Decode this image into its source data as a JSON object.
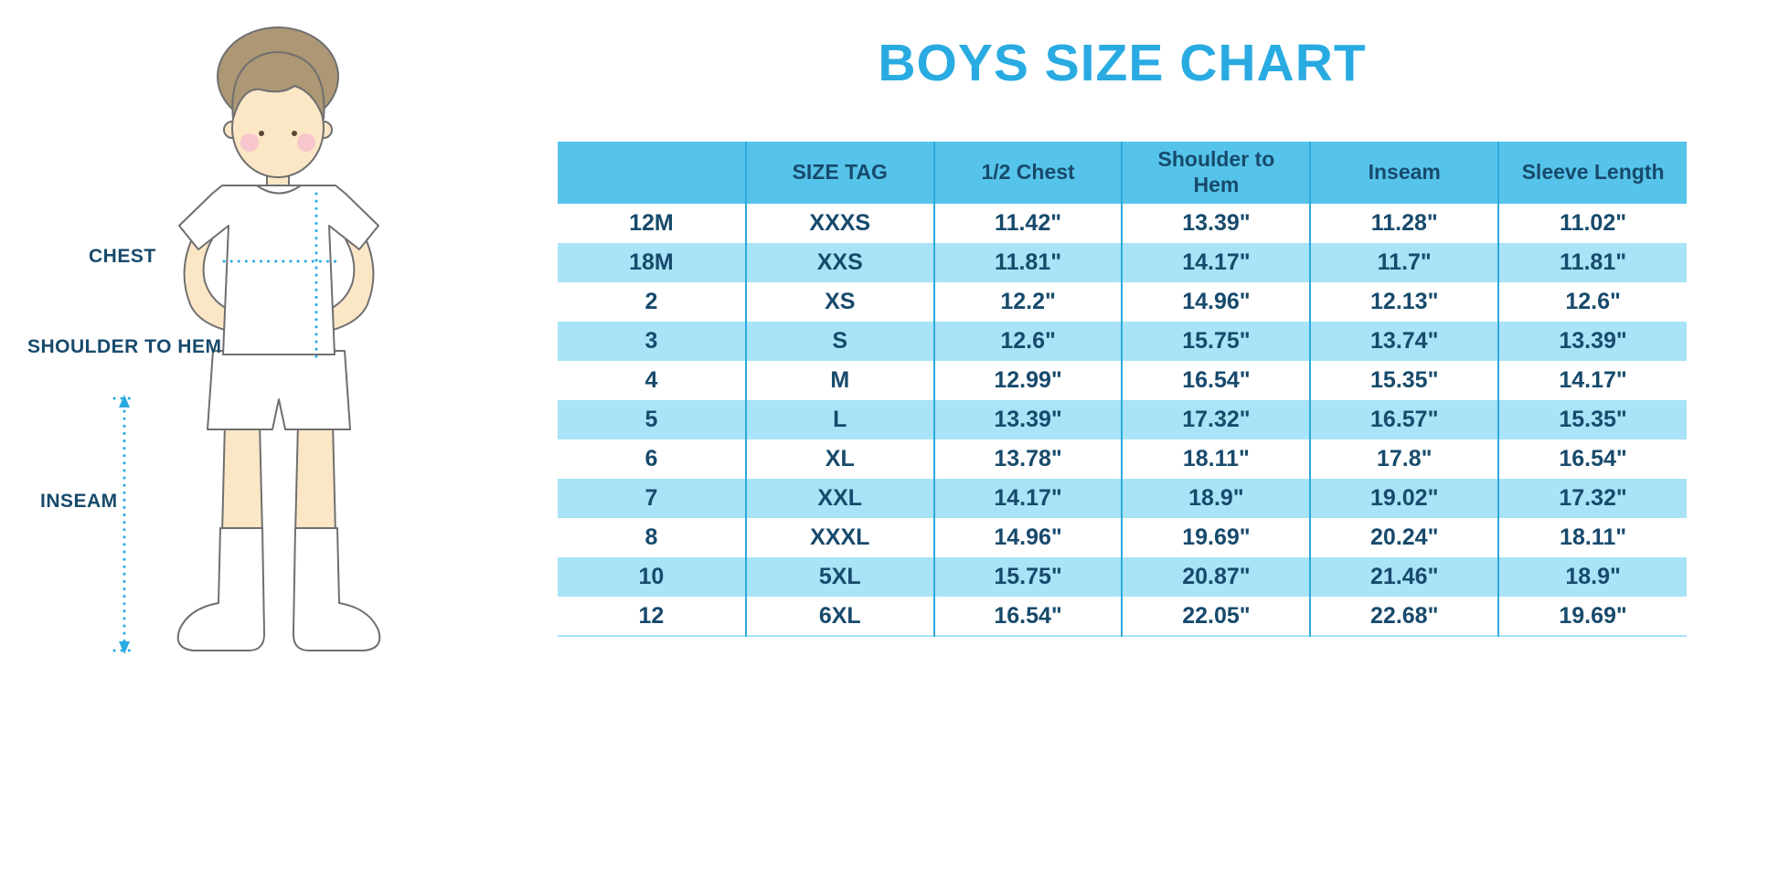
{
  "title": "BOYS SIZE CHART",
  "colors": {
    "title": "#29ABE2",
    "header": "#56C4EA",
    "stripe": "#A8E3F7",
    "navy": "#174A6C",
    "line": "#2EA9DC"
  },
  "figure": {
    "labels": [
      {
        "text": "CHEST"
      },
      {
        "text": "SHOULDER TO HEM"
      },
      {
        "text": "INSEAM"
      }
    ]
  },
  "chart_data": {
    "type": "table",
    "title": "BOYS SIZE CHART",
    "columns": [
      "",
      "SIZE TAG",
      "1/2 Chest",
      "Shoulder to Hem",
      "Inseam",
      "Sleeve Length"
    ],
    "rows": [
      [
        "12M",
        "XXXS",
        "11.42\"",
        "13.39\"",
        "11.28\"",
        "11.02\""
      ],
      [
        "18M",
        "XXS",
        "11.81\"",
        "14.17\"",
        "11.7\"",
        "11.81\""
      ],
      [
        "2",
        "XS",
        "12.2\"",
        "14.96\"",
        "12.13\"",
        "12.6\""
      ],
      [
        "3",
        "S",
        "12.6\"",
        "15.75\"",
        "13.74\"",
        "13.39\""
      ],
      [
        "4",
        "M",
        "12.99\"",
        "16.54\"",
        "15.35\"",
        "14.17\""
      ],
      [
        "5",
        "L",
        "13.39\"",
        "17.32\"",
        "16.57\"",
        "15.35\""
      ],
      [
        "6",
        "XL",
        "13.78\"",
        "18.11\"",
        "17.8\"",
        "16.54\""
      ],
      [
        "7",
        "XXL",
        "14.17\"",
        "18.9\"",
        "19.02\"",
        "17.32\""
      ],
      [
        "8",
        "XXXL",
        "14.96\"",
        "19.69\"",
        "20.24\"",
        "18.11\""
      ],
      [
        "10",
        "5XL",
        "15.75\"",
        "20.87\"",
        "21.46\"",
        "18.9\""
      ],
      [
        "12",
        "6XL",
        "16.54\"",
        "22.05\"",
        "22.68\"",
        "19.69\""
      ]
    ]
  }
}
